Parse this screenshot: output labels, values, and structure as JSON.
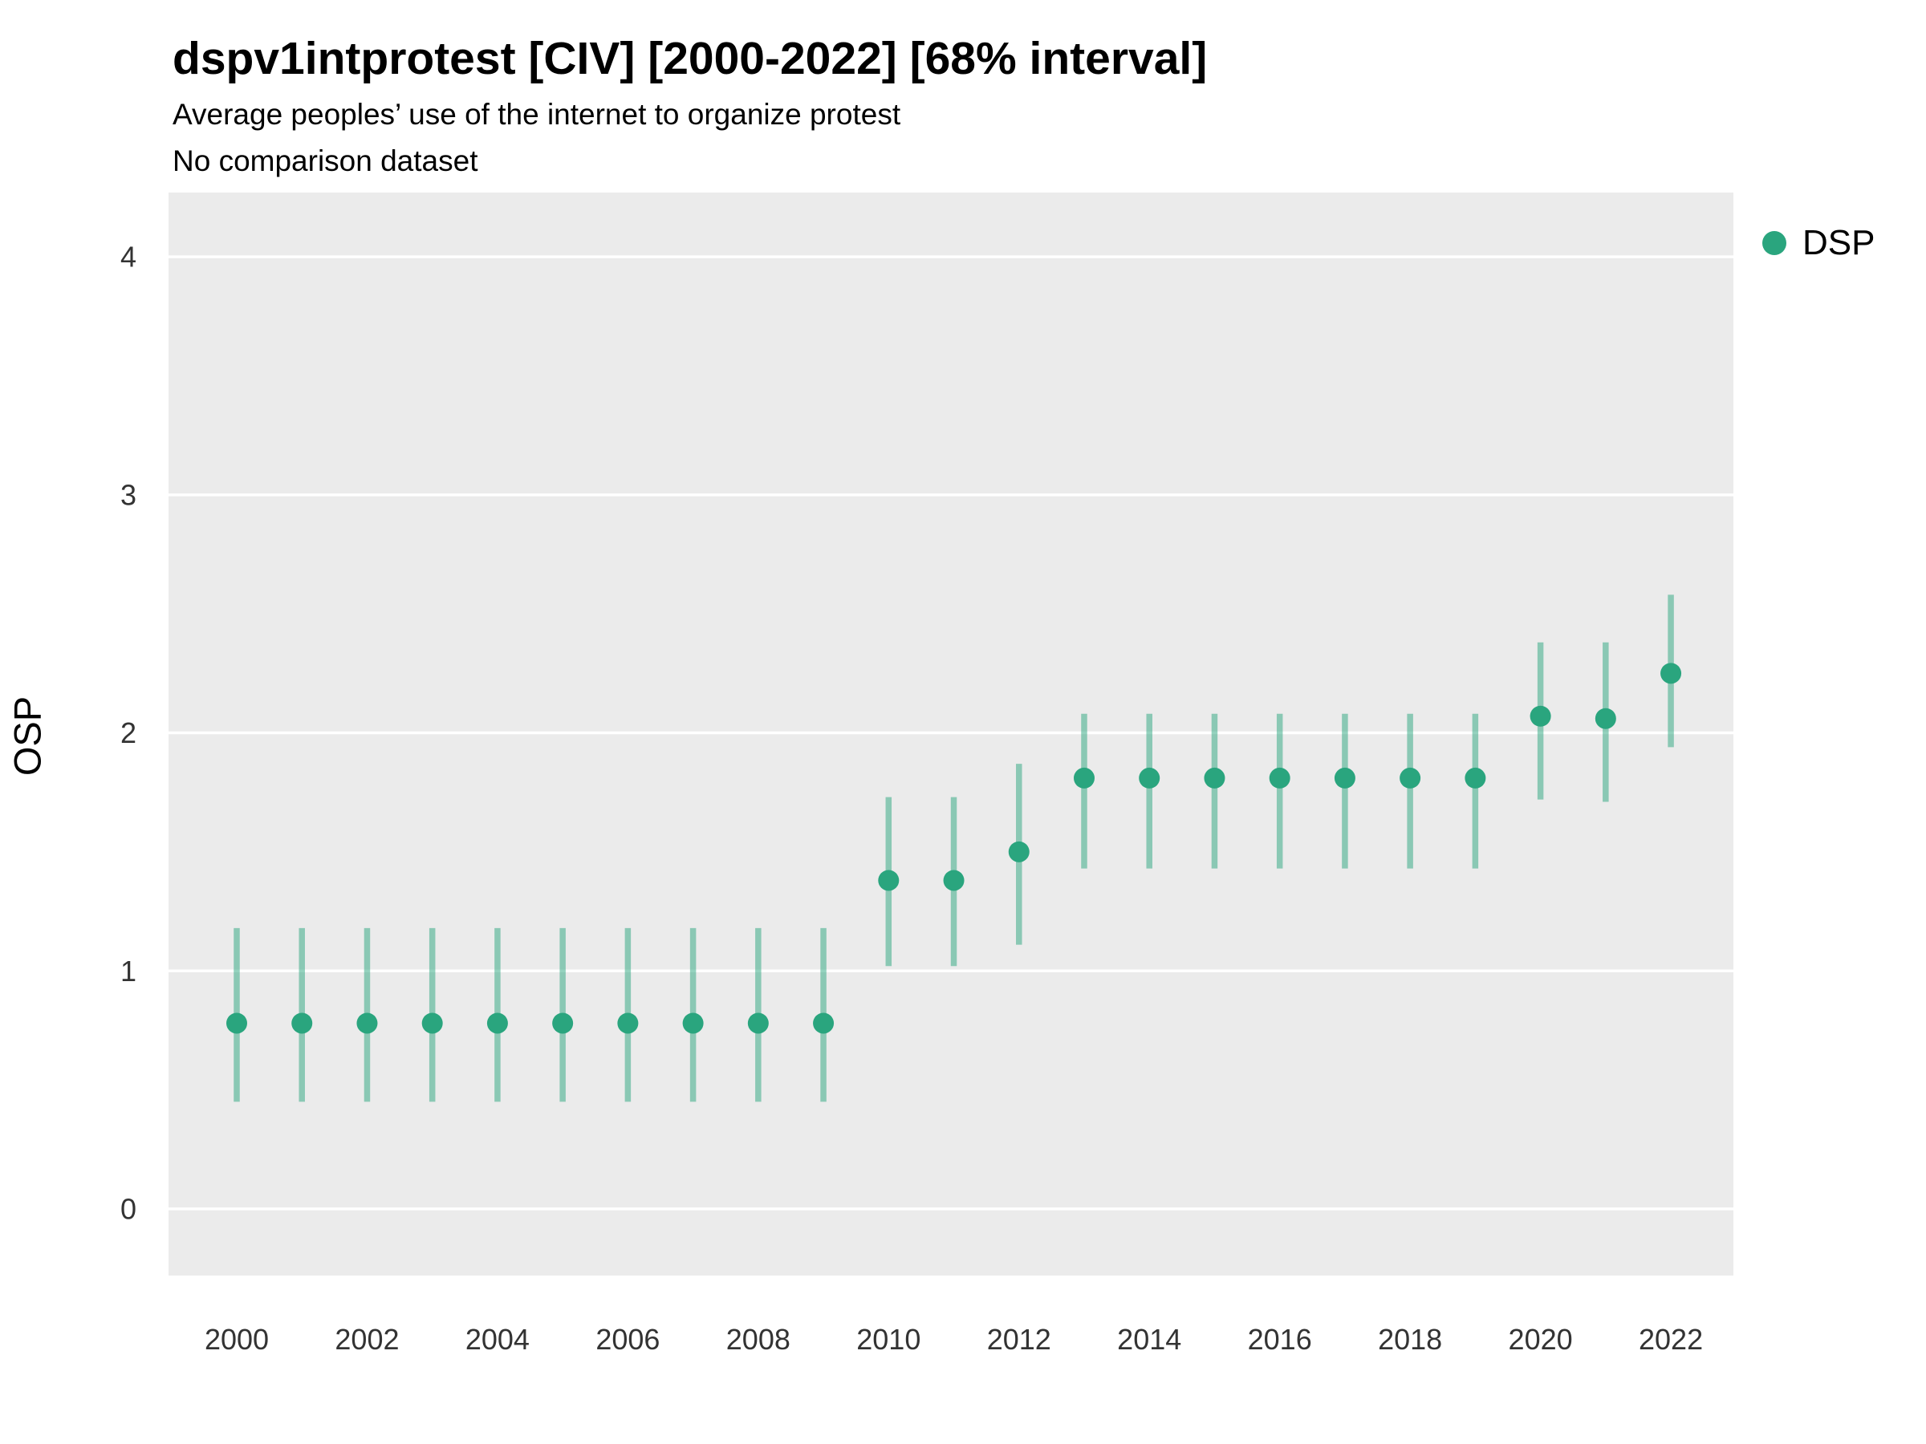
{
  "header": {
    "title": "dspv1intprotest [CIV] [2000-2022] [68% interval]",
    "subtitle1": "Average peoples’ use of the internet to organize protest",
    "subtitle2": "No comparison dataset"
  },
  "axes": {
    "y_label": "OSP",
    "y_ticks": [
      0,
      1,
      2,
      3,
      4
    ],
    "x_ticks": [
      2000,
      2002,
      2004,
      2006,
      2008,
      2010,
      2012,
      2014,
      2016,
      2018,
      2020,
      2022
    ]
  },
  "legend": {
    "label": "DSP"
  },
  "colors": {
    "point": "#2aa57e",
    "interval": "rgba(42,165,126,0.5)",
    "panel_bg": "#ebebeb",
    "gridline": "#ffffff"
  },
  "chart_data": {
    "type": "scatter",
    "title": "dspv1intprotest [CIV] [2000-2022] [68% interval]",
    "subtitle": "Average peoples’ use of the internet to organize protest",
    "note": "No comparison dataset",
    "interval": "68%",
    "xlabel": "",
    "ylabel": "OSP",
    "ylim": [
      -0.28,
      4.27
    ],
    "x": [
      2000,
      2001,
      2002,
      2003,
      2004,
      2005,
      2006,
      2007,
      2008,
      2009,
      2010,
      2011,
      2012,
      2013,
      2014,
      2015,
      2016,
      2017,
      2018,
      2019,
      2020,
      2021,
      2022
    ],
    "series": [
      {
        "name": "DSP",
        "estimates": [
          0.78,
          0.78,
          0.78,
          0.78,
          0.78,
          0.78,
          0.78,
          0.78,
          0.78,
          0.78,
          1.38,
          1.38,
          1.5,
          1.81,
          1.81,
          1.81,
          1.81,
          1.81,
          1.81,
          1.81,
          2.07,
          2.06,
          2.25
        ],
        "low": [
          0.45,
          0.45,
          0.45,
          0.45,
          0.45,
          0.45,
          0.45,
          0.45,
          0.45,
          0.45,
          1.02,
          1.02,
          1.11,
          1.43,
          1.43,
          1.43,
          1.43,
          1.43,
          1.43,
          1.43,
          1.72,
          1.71,
          1.94
        ],
        "high": [
          1.18,
          1.18,
          1.18,
          1.18,
          1.18,
          1.18,
          1.18,
          1.18,
          1.18,
          1.18,
          1.73,
          1.73,
          1.87,
          2.08,
          2.08,
          2.08,
          2.08,
          2.08,
          2.08,
          2.08,
          2.38,
          2.38,
          2.58
        ]
      }
    ]
  }
}
